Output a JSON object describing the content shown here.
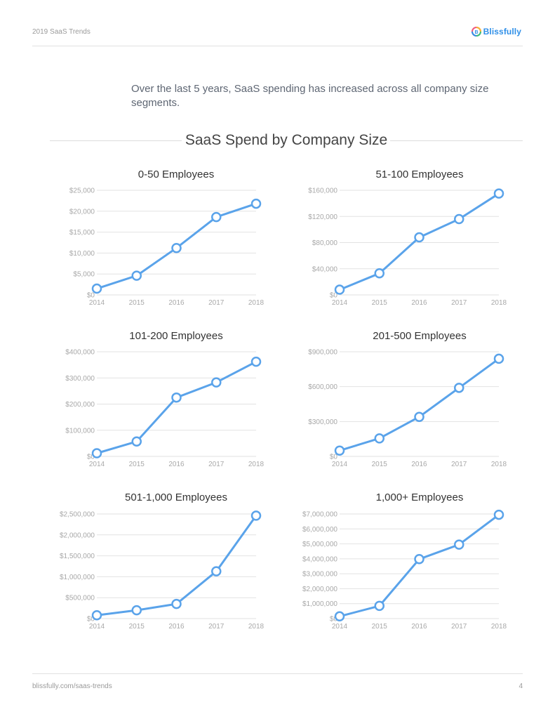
{
  "header": {
    "title": "2019 SaaS Trends",
    "brand": "Blissfully"
  },
  "intro": "Over the last 5 years, SaaS spending has increased across all company size segments.",
  "section_title": "SaaS Spend by Company Size",
  "footer": {
    "url": "blissfully.com/saas-trends",
    "page": "4"
  },
  "colors": {
    "line": "#5aa3ea",
    "grid": "#e2e2e2",
    "tick": "#a8a8a8"
  },
  "chart_data": [
    {
      "type": "line",
      "title": "0-50 Employees",
      "categories": [
        "2014",
        "2015",
        "2016",
        "2017",
        "2018"
      ],
      "values": [
        1500,
        4600,
        11200,
        18600,
        21800
      ],
      "ylim": [
        0,
        25000
      ],
      "yticks": [
        0,
        5000,
        10000,
        15000,
        20000,
        25000
      ],
      "ytick_labels": [
        "$0",
        "$5,000",
        "$10,000",
        "$15,000",
        "$20,000",
        "$25,000"
      ],
      "xlabel": "",
      "ylabel": ""
    },
    {
      "type": "line",
      "title": "51-100 Employees",
      "categories": [
        "2014",
        "2015",
        "2016",
        "2017",
        "2018"
      ],
      "values": [
        8000,
        33000,
        88000,
        116000,
        155000
      ],
      "ylim": [
        0,
        160000
      ],
      "yticks": [
        0,
        40000,
        80000,
        120000,
        160000
      ],
      "ytick_labels": [
        "$0",
        "$40,000",
        "$80,000",
        "$120,000",
        "$160,000"
      ],
      "xlabel": "",
      "ylabel": ""
    },
    {
      "type": "line",
      "title": "101-200 Employees",
      "categories": [
        "2014",
        "2015",
        "2016",
        "2017",
        "2018"
      ],
      "values": [
        12000,
        57000,
        225000,
        283000,
        362000
      ],
      "ylim": [
        0,
        400000
      ],
      "yticks": [
        0,
        100000,
        200000,
        300000,
        400000
      ],
      "ytick_labels": [
        "$0",
        "$100,000",
        "$200,000",
        "$300,000",
        "$400,000"
      ],
      "xlabel": "",
      "ylabel": ""
    },
    {
      "type": "line",
      "title": "201-500 Employees",
      "categories": [
        "2014",
        "2015",
        "2016",
        "2017",
        "2018"
      ],
      "values": [
        50000,
        155000,
        340000,
        590000,
        840000
      ],
      "ylim": [
        0,
        900000
      ],
      "yticks": [
        0,
        300000,
        600000,
        900000
      ],
      "ytick_labels": [
        "$0",
        "$300,000",
        "$600,000",
        "$900,000"
      ],
      "xlabel": "",
      "ylabel": ""
    },
    {
      "type": "line",
      "title": "501-1,000 Employees",
      "categories": [
        "2014",
        "2015",
        "2016",
        "2017",
        "2018"
      ],
      "values": [
        80000,
        200000,
        350000,
        1130000,
        2460000
      ],
      "ylim": [
        0,
        2500000
      ],
      "yticks": [
        0,
        500000,
        1000000,
        1500000,
        2000000,
        2500000
      ],
      "ytick_labels": [
        "$0",
        "$500,000",
        "$1,000,000",
        "$1,500,000",
        "$2,000,000",
        "$2,500,000"
      ],
      "xlabel": "",
      "ylabel": ""
    },
    {
      "type": "line",
      "title": "1,000+ Employees",
      "categories": [
        "2014",
        "2015",
        "2016",
        "2017",
        "2018"
      ],
      "values": [
        150000,
        850000,
        3980000,
        4950000,
        6950000
      ],
      "ylim": [
        0,
        7000000
      ],
      "yticks": [
        0,
        1000000,
        2000000,
        3000000,
        4000000,
        5000000,
        6000000,
        7000000
      ],
      "ytick_labels": [
        "$0",
        "$1,000,000",
        "$2,000,000",
        "$3,000,000",
        "$4,000,000",
        "$5,000,000",
        "$6,000,000",
        "$7,000,000"
      ],
      "xlabel": "",
      "ylabel": ""
    }
  ]
}
